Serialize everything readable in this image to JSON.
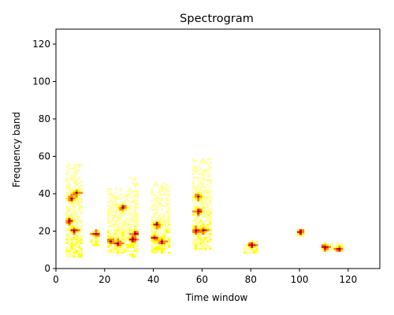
{
  "chart_data": {
    "type": "heatmap",
    "title": "Spectrogram",
    "xlabel": "Time window",
    "ylabel": "Frequency band",
    "xlim": [
      0,
      133
    ],
    "ylim": [
      0,
      128
    ],
    "xticks": [
      "0",
      "20",
      "40",
      "60",
      "80",
      "100",
      "120"
    ],
    "yticks": [
      "0",
      "20",
      "40",
      "60",
      "80",
      "100",
      "120"
    ],
    "grid": false,
    "colormap": [
      "#ffffff",
      "#ffffa0",
      "#ffff00",
      "#ff8000",
      "#ff0000",
      "#800000"
    ],
    "bursts": [
      {
        "x": [
          4,
          10
        ],
        "y": [
          6,
          55
        ],
        "peaks": [
          [
            6,
            37
          ],
          [
            7,
            20
          ],
          [
            8,
            40
          ],
          [
            5,
            25
          ]
        ]
      },
      {
        "x": [
          14,
          17
        ],
        "y": [
          12,
          20
        ],
        "peaks": [
          [
            16,
            18
          ]
        ]
      },
      {
        "x": [
          21,
          29
        ],
        "y": [
          8,
          42
        ],
        "peaks": [
          [
            22,
            14
          ],
          [
            25,
            13
          ],
          [
            27,
            32
          ]
        ]
      },
      {
        "x": [
          30,
          33
        ],
        "y": [
          6,
          48
        ],
        "peaks": [
          [
            31,
            15
          ],
          [
            32,
            18
          ]
        ]
      },
      {
        "x": [
          39,
          46
        ],
        "y": [
          8,
          45
        ],
        "peaks": [
          [
            40,
            16
          ],
          [
            43,
            14
          ],
          [
            41,
            23
          ]
        ]
      },
      {
        "x": [
          56,
          63
        ],
        "y": [
          10,
          58
        ],
        "peaks": [
          [
            57,
            20
          ],
          [
            58,
            30
          ],
          [
            60,
            20
          ],
          [
            58,
            38
          ]
        ]
      },
      {
        "x": [
          77,
          82
        ],
        "y": [
          8,
          14
        ],
        "peaks": [
          [
            80,
            12
          ]
        ]
      },
      {
        "x": [
          109,
          117
        ],
        "y": [
          9,
          13
        ],
        "peaks": [
          [
            110,
            11
          ],
          [
            116,
            10
          ]
        ]
      },
      {
        "x": [
          99,
          101
        ],
        "y": [
          17,
          20
        ],
        "peaks": [
          [
            100,
            19
          ]
        ]
      }
    ]
  }
}
